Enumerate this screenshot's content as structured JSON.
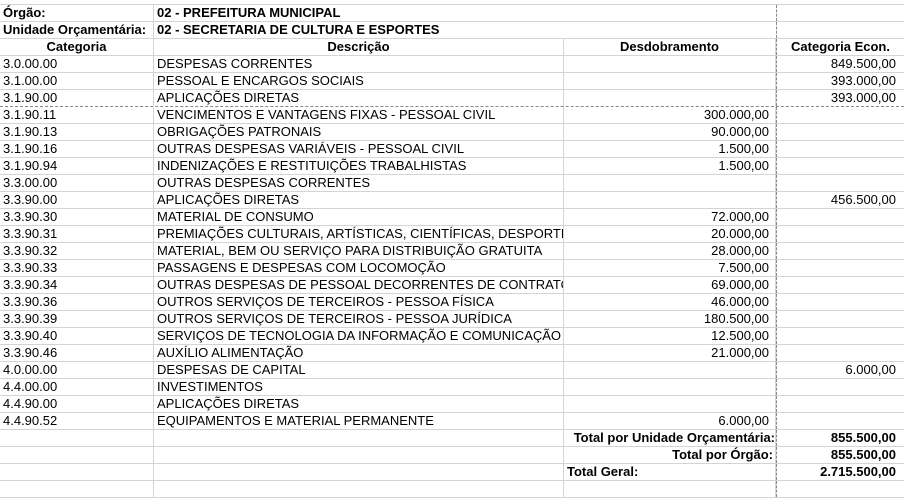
{
  "header": {
    "orgao_label": "Órgão:",
    "orgao_value": "02 - PREFEITURA MUNICIPAL",
    "unidade_label": "Unidade Orçamentária:",
    "unidade_value": "02 - SECRETARIA DE CULTURA E ESPORTES"
  },
  "columns": [
    "Categoria",
    "Descrição",
    "Desdobramento",
    "Categoria Econ."
  ],
  "rows": [
    {
      "cat": "3.0.00.00",
      "desc": "DESPESAS CORRENTES",
      "desd": "",
      "econ": "849.500,00"
    },
    {
      "cat": "3.1.00.00",
      "desc": "PESSOAL E ENCARGOS SOCIAIS",
      "desd": "",
      "econ": "393.000,00"
    },
    {
      "cat": "3.1.90.00",
      "desc": "APLICAÇÕES DIRETAS",
      "desd": "",
      "econ": "393.000,00"
    },
    {
      "cat": "3.1.90.11",
      "desc": "VENCIMENTOS E VANTAGENS FIXAS -  PESSOAL CIVIL",
      "desd": "300.000,00",
      "econ": ""
    },
    {
      "cat": "3.1.90.13",
      "desc": "OBRIGAÇÕES PATRONAIS",
      "desd": "90.000,00",
      "econ": ""
    },
    {
      "cat": "3.1.90.16",
      "desc": "OUTRAS DESPESAS VARIÁVEIS - PESSOAL CIVIL",
      "desd": "1.500,00",
      "econ": ""
    },
    {
      "cat": "3.1.90.94",
      "desc": "INDENIZAÇÕES E RESTITUIÇÕES TRABALHISTAS",
      "desd": "1.500,00",
      "econ": ""
    },
    {
      "cat": "3.3.00.00",
      "desc": "OUTRAS DESPESAS CORRENTES",
      "desd": "",
      "econ": ""
    },
    {
      "cat": "3.3.90.00",
      "desc": "APLICAÇÕES DIRETAS",
      "desd": "",
      "econ": "456.500,00"
    },
    {
      "cat": "3.3.90.30",
      "desc": "MATERIAL DE CONSUMO",
      "desd": "72.000,00",
      "econ": ""
    },
    {
      "cat": "3.3.90.31",
      "desc": "PREMIAÇÕES CULTURAIS, ARTÍSTICAS, CIENTÍFICAS, DESPORTIVAS",
      "desd": "20.000,00",
      "econ": ""
    },
    {
      "cat": "3.3.90.32",
      "desc": "MATERIAL, BEM OU SERVIÇO PARA DISTRIBUIÇÃO GRATUITA",
      "desd": "28.000,00",
      "econ": ""
    },
    {
      "cat": "3.3.90.33",
      "desc": "PASSAGENS E DESPESAS COM LOCOMOÇÃO",
      "desd": "7.500,00",
      "econ": ""
    },
    {
      "cat": "3.3.90.34",
      "desc": "OUTRAS DESPESAS DE PESSOAL DECORRENTES DE CONTRATOS",
      "desd": "69.000,00",
      "econ": ""
    },
    {
      "cat": "3.3.90.36",
      "desc": "OUTROS SERVIÇOS DE TERCEIROS - PESSOA FÍSICA",
      "desd": "46.000,00",
      "econ": ""
    },
    {
      "cat": "3.3.90.39",
      "desc": "OUTROS SERVIÇOS DE TERCEIROS -  PESSOA JURÍDICA",
      "desd": "180.500,00",
      "econ": ""
    },
    {
      "cat": "3.3.90.40",
      "desc": "SERVIÇOS DE TECNOLOGIA DA INFORMAÇÃO E COMUNICAÇÃO",
      "desd": "12.500,00",
      "econ": ""
    },
    {
      "cat": "3.3.90.46",
      "desc": "AUXÍLIO ALIMENTAÇÃO",
      "desd": "21.000,00",
      "econ": ""
    },
    {
      "cat": "4.0.00.00",
      "desc": "DESPESAS DE CAPITAL",
      "desd": "",
      "econ": "6.000,00"
    },
    {
      "cat": "4.4.00.00",
      "desc": "INVESTIMENTOS",
      "desd": "",
      "econ": ""
    },
    {
      "cat": "4.4.90.00",
      "desc": "APLICAÇÕES DIRETAS",
      "desd": "",
      "econ": ""
    },
    {
      "cat": "4.4.90.52",
      "desc": "EQUIPAMENTOS E MATERIAL PERMANENTE",
      "desd": "6.000,00",
      "econ": ""
    }
  ],
  "totals": {
    "unidade_label": "Total por Unidade Orçamentária:",
    "unidade_value": "855.500,00",
    "orgao_label": "Total por Órgão:",
    "orgao_value": "855.500,00",
    "geral_label": "Total Geral:",
    "geral_value": "2.715.500,00"
  }
}
